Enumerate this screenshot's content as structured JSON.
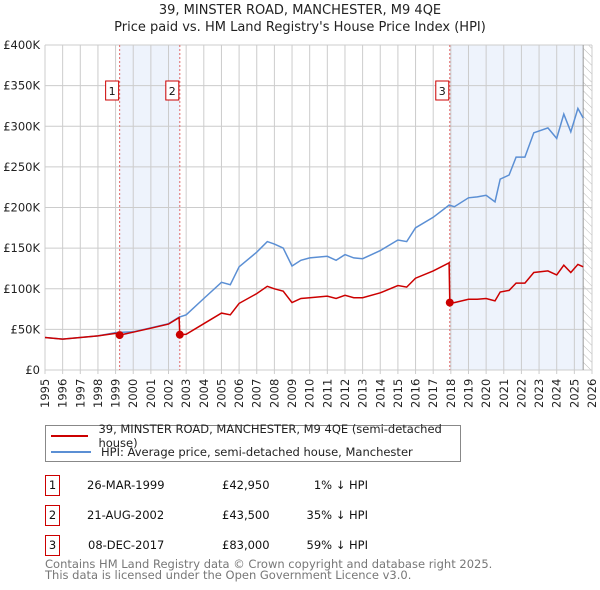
{
  "chart_data": {
    "type": "line",
    "title": "39, MINSTER ROAD, MANCHESTER, M9 4QE",
    "subtitle": "Price paid vs. HM Land Registry's House Price Index (HPI)",
    "xlim": [
      1995,
      2026
    ],
    "ylim": [
      0,
      400000
    ],
    "x_ticks": [
      "1995",
      "1996",
      "1997",
      "1998",
      "1999",
      "2000",
      "2001",
      "2002",
      "2003",
      "2004",
      "2005",
      "2006",
      "2007",
      "2008",
      "2009",
      "2010",
      "2011",
      "2012",
      "2013",
      "2014",
      "2015",
      "2016",
      "2017",
      "2018",
      "2019",
      "2020",
      "2021",
      "2022",
      "2023",
      "2024",
      "2025",
      "2026"
    ],
    "y_ticks": [
      {
        "v": 0,
        "label": "£0"
      },
      {
        "v": 50000,
        "label": "£50K"
      },
      {
        "v": 100000,
        "label": "£100K"
      },
      {
        "v": 150000,
        "label": "£150K"
      },
      {
        "v": 200000,
        "label": "£200K"
      },
      {
        "v": 250000,
        "label": "£250K"
      },
      {
        "v": 300000,
        "label": "£300K"
      },
      {
        "v": 350000,
        "label": "£350K"
      },
      {
        "v": 400000,
        "label": "£400K"
      }
    ],
    "grid": true,
    "shaded_ranges": [
      [
        1999.23,
        2002.64
      ],
      [
        2017.94,
        2025.5
      ]
    ],
    "hatched_from": 2025.5,
    "series": [
      {
        "name": "39, MINSTER ROAD, MANCHESTER, M9 4QE (semi-detached house)",
        "color": "#cc0000",
        "x": [
          1995,
          1996,
          1997,
          1998,
          1999,
          1999.23,
          2000,
          2001,
          2002,
          2002.6,
          2002.64,
          2003,
          2004,
          2005,
          2005.5,
          2006,
          2007,
          2007.6,
          2008,
          2008.5,
          2009,
          2009.5,
          2010,
          2011,
          2011.5,
          2012,
          2012.5,
          2013,
          2014,
          2015,
          2015.5,
          2016,
          2017,
          2017.9,
          2017.94,
          2018.2,
          2019,
          2019.5,
          2020,
          2020.5,
          2020.8,
          2021.3,
          2021.7,
          2022.2,
          2022.7,
          2023.5,
          2024,
          2024.4,
          2024.8,
          2025.2,
          2025.5
        ],
        "y": [
          40000,
          38000,
          40000,
          42000,
          45000,
          42950,
          46500,
          51500,
          56500,
          64500,
          43500,
          44000,
          57000,
          70000,
          68000,
          82000,
          94000,
          103000,
          100000,
          97000,
          83000,
          88000,
          89000,
          91000,
          88000,
          92000,
          89000,
          89000,
          95000,
          104000,
          102000,
          113000,
          122000,
          132000,
          83000,
          83000,
          87000,
          87000,
          88000,
          85000,
          96000,
          98000,
          107000,
          107000,
          120000,
          122000,
          117000,
          129000,
          120000,
          130000,
          127000
        ]
      },
      {
        "name": "HPI: Average price, semi-detached house, Manchester",
        "color": "#5b8fd4",
        "x": [
          1995,
          1996,
          1997,
          1998,
          1999,
          2000,
          2001,
          2002,
          2002.6,
          2003,
          2004,
          2005,
          2005.5,
          2006,
          2007,
          2007.6,
          2008,
          2008.5,
          2009,
          2009.5,
          2010,
          2011,
          2011.5,
          2012,
          2012.5,
          2013,
          2014,
          2015,
          2015.5,
          2016,
          2017,
          2017.9,
          2018.2,
          2019,
          2019.5,
          2020,
          2020.5,
          2020.8,
          2021.3,
          2021.7,
          2022.2,
          2022.7,
          2023.5,
          2024,
          2024.4,
          2024.8,
          2025.2,
          2025.5
        ],
        "y": [
          40000,
          38000,
          40000,
          42000,
          46000,
          47000,
          52000,
          57000,
          65000,
          68000,
          88000,
          108000,
          105000,
          127000,
          145000,
          158000,
          155000,
          150000,
          128000,
          135000,
          138000,
          140000,
          135000,
          142000,
          138000,
          137000,
          147000,
          160000,
          158000,
          175000,
          188000,
          203000,
          201000,
          212000,
          213000,
          215000,
          207000,
          235000,
          240000,
          262000,
          262000,
          292000,
          298000,
          285000,
          315000,
          293000,
          322000,
          310000
        ]
      }
    ],
    "sales": [
      {
        "id": "1",
        "x": 1999.23,
        "y": 42950
      },
      {
        "id": "2",
        "x": 2002.64,
        "y": 43500
      },
      {
        "id": "3",
        "x": 2017.94,
        "y": 83000
      }
    ]
  },
  "legend": {
    "property": "39, MINSTER ROAD, MANCHESTER, M9 4QE (semi-detached house)",
    "hpi": "HPI: Average price, semi-detached house, Manchester"
  },
  "transactions": [
    {
      "id": "1",
      "date": "26-MAR-1999",
      "price": "£42,950",
      "hpi": "1% ↓ HPI"
    },
    {
      "id": "2",
      "date": "21-AUG-2002",
      "price": "£43,500",
      "hpi": "35% ↓ HPI"
    },
    {
      "id": "3",
      "date": "08-DEC-2017",
      "price": "£83,000",
      "hpi": "59% ↓ HPI"
    }
  ],
  "footer": {
    "line1": "Contains HM Land Registry data © Crown copyright and database right 2025.",
    "line2": "This data is licensed under the Open Government Licence v3.0."
  }
}
